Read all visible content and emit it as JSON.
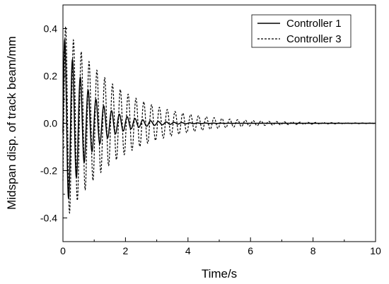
{
  "chart_data": {
    "type": "line",
    "title": "",
    "xlabel": "Time/s",
    "ylabel": "Midspan disp. of track beam/mm",
    "xlim": [
      0,
      10
    ],
    "ylim": [
      -0.5,
      0.5
    ],
    "x_ticks": [
      "0",
      "2",
      "4",
      "6",
      "8",
      "10"
    ],
    "y_ticks": [
      "-0.4",
      "-0.2",
      "0.0",
      "0.2",
      "0.4"
    ],
    "grid": false,
    "legend_position": "top-right",
    "series": [
      {
        "name": "Controller 1",
        "line_style": "solid",
        "color": "#000000",
        "signal": "damped-oscillation",
        "peak_amplitude": 0.4,
        "frequency_hz": 4.0,
        "decay_rate_per_s": 1.3,
        "envelope_peaks": [
          {
            "t": 0.15,
            "disp": 0.32
          },
          {
            "t": 0.25,
            "disp": -0.4
          },
          {
            "t": 1.0,
            "disp": 0.12
          },
          {
            "t": 2.0,
            "disp": 0.04
          },
          {
            "t": 3.0,
            "disp": 0.015
          },
          {
            "t": 4.0,
            "disp": 0.006
          }
        ]
      },
      {
        "name": "Controller 3",
        "line_style": "dashed",
        "color": "#000000",
        "signal": "damped-oscillation",
        "peak_amplitude": 0.43,
        "frequency_hz": 4.0,
        "decay_rate_per_s": 0.6,
        "envelope_peaks": [
          {
            "t": 0.3,
            "disp": -0.43
          },
          {
            "t": 0.4,
            "disp": 0.37
          },
          {
            "t": 1.0,
            "disp": 0.28
          },
          {
            "t": 2.0,
            "disp": 0.15
          },
          {
            "t": 3.0,
            "disp": 0.09
          },
          {
            "t": 4.0,
            "disp": 0.05
          },
          {
            "t": 6.0,
            "disp": 0.015
          },
          {
            "t": 8.0,
            "disp": 0.005
          }
        ]
      }
    ]
  }
}
